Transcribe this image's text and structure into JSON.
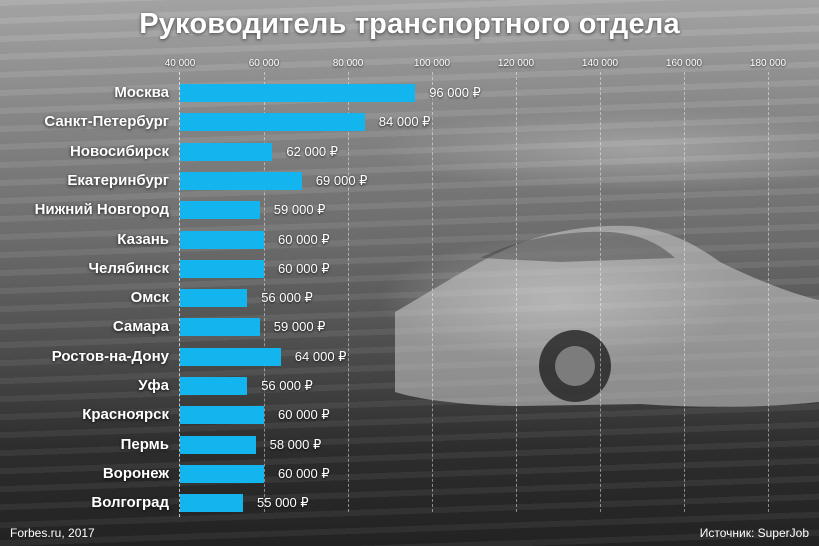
{
  "title": "Руководитель транспортного отдела",
  "credit": "Forbes.ru, 2017",
  "source": "Источник: SuperJob",
  "colors": {
    "bar": "#13b5ee",
    "text": "#ffffff"
  },
  "chart_data": {
    "type": "bar",
    "orientation": "horizontal",
    "title": "Руководитель транспортного отдела",
    "xlabel": "",
    "ylabel": "",
    "xlim": [
      40000,
      180000
    ],
    "grid": true,
    "ticks": [
      {
        "value": 40000,
        "label": "40 000"
      },
      {
        "value": 60000,
        "label": "60 000"
      },
      {
        "value": 80000,
        "label": "80 000"
      },
      {
        "value": 100000,
        "label": "100 000"
      },
      {
        "value": 120000,
        "label": "120 000"
      },
      {
        "value": 140000,
        "label": "140 000"
      },
      {
        "value": 160000,
        "label": "160 000"
      },
      {
        "value": 180000,
        "label": "180 000"
      }
    ],
    "categories": [
      "Москва",
      "Санкт-Петербург",
      "Новосибирск",
      "Екатеринбург",
      "Нижний Новгород",
      "Казань",
      "Челябинск",
      "Омск",
      "Самара",
      "Ростов-на-Дону",
      "Уфа",
      "Красноярск",
      "Пермь",
      "Воронеж",
      "Волгоград"
    ],
    "values": [
      96000,
      84000,
      62000,
      69000,
      59000,
      60000,
      60000,
      56000,
      59000,
      64000,
      56000,
      60000,
      58000,
      60000,
      55000
    ],
    "labels": [
      "96 000 ₽",
      "84 000 ₽",
      "62 000 ₽",
      "69 000 ₽",
      "59 000 ₽",
      "60 000 ₽",
      "60 000 ₽",
      "56 000 ₽",
      "59 000 ₽",
      "64 000 ₽",
      "56 000 ₽",
      "60 000 ₽",
      "58 000 ₽",
      "60 000 ₽",
      "55 000 ₽"
    ]
  }
}
